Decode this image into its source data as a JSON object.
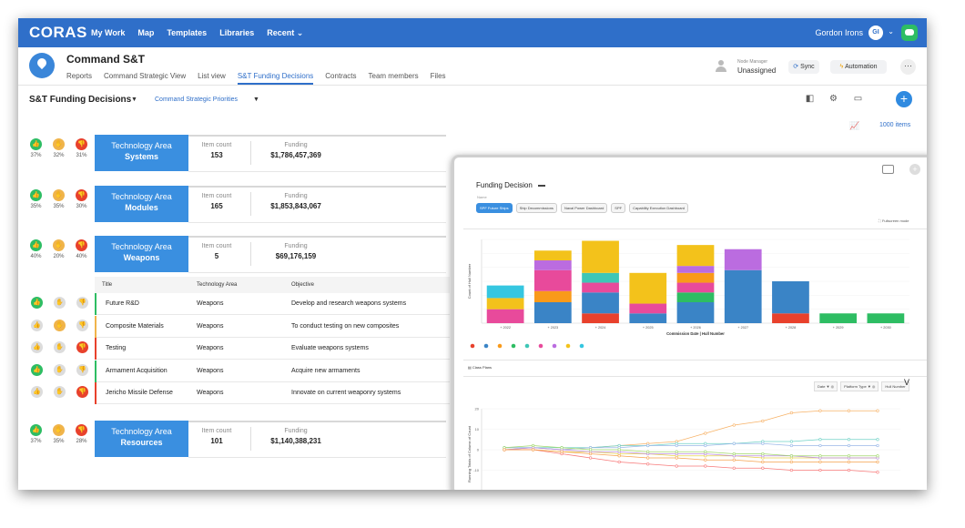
{
  "topbar": {
    "logo": "CORAS",
    "nav": [
      "My Work",
      "Map",
      "Templates",
      "Libraries",
      "Recent"
    ],
    "recent_caret": "⌄",
    "user_name": "Gordon Irons",
    "user_initials": "GI"
  },
  "project": {
    "title": "Command S&T",
    "tabs": [
      "Reports",
      "Command Strategic View",
      "List view",
      "S&T Funding Decisions",
      "Contracts",
      "Team members",
      "Files"
    ],
    "active_tab": "S&T Funding Decisions",
    "manager_label": "Node Manager",
    "manager_value": "Unassigned",
    "sync_label": "Sync",
    "automation_label": "Automation",
    "more_label": "···"
  },
  "subbar": {
    "title": "S&T Funding Decisions",
    "filter": "Command Strategic Priorities",
    "items_count": "1000 items"
  },
  "areas": [
    {
      "label": "Technology Area",
      "name": "Systems",
      "count_label": "Item count",
      "count": "153",
      "funding_label": "Funding",
      "funding": "$1,786,457,369",
      "pcts": [
        "37%",
        "32%",
        "31%"
      ]
    },
    {
      "label": "Technology Area",
      "name": "Modules",
      "count_label": "Item count",
      "count": "165",
      "funding_label": "Funding",
      "funding": "$1,853,843,067",
      "pcts": [
        "35%",
        "35%",
        "30%"
      ]
    },
    {
      "label": "Technology Area",
      "name": "Weapons",
      "count_label": "Item count",
      "count": "5",
      "funding_label": "Funding",
      "funding": "$69,176,159",
      "pcts": [
        "40%",
        "20%",
        "40%"
      ]
    },
    {
      "label": "Technology Area",
      "name": "Resources",
      "count_label": "Item count",
      "count": "101",
      "funding_label": "Funding",
      "funding": "$1,140,388,231",
      "pcts": [
        "37%",
        "35%",
        "28%"
      ]
    }
  ],
  "table": {
    "headers": [
      "Title",
      "Technology Area",
      "Objective"
    ],
    "rows": [
      {
        "title": "Future R&D",
        "area": "Weapons",
        "objective": "Develop and research weapons systems",
        "vote": "up",
        "color": "#2ebd63"
      },
      {
        "title": "Composite Materials",
        "area": "Weapons",
        "objective": "To conduct testing on new composites",
        "vote": "neutral",
        "color": "#f0b44a"
      },
      {
        "title": "Testing",
        "area": "Weapons",
        "objective": "Evaluate weapons systems",
        "vote": "down",
        "color": "#e8412c"
      },
      {
        "title": "Armament Acquisition",
        "area": "Weapons",
        "objective": "Acquire new armaments",
        "vote": "up",
        "color": "#2ebd63"
      },
      {
        "title": "Jericho Missile Defense",
        "area": "Weapons",
        "objective": "Innovate on current weaponry systems",
        "vote": "down",
        "color": "#e8412c"
      }
    ]
  },
  "overlay": {
    "title": "Funding Decision",
    "small_label": "Name",
    "tabs": [
      "SPF Future Ships",
      "Ship Decommissions",
      "Naval Power Dashboard",
      "SPF",
      "Capability Execution Dashboard"
    ],
    "fullscreen": "Fullscreen mode",
    "class_plans": "Class Plans",
    "filters": [
      "Date ▼ ◎",
      "Platform Type ▼ ◎",
      "Hull Number"
    ],
    "collapse": "V"
  },
  "chart_data": [
    {
      "type": "bar",
      "stacked": true,
      "categories": [
        "2022",
        "2023",
        "2024",
        "2025",
        "2026",
        "2027",
        "2028",
        "2029",
        "2030"
      ],
      "xlabel": "Commission Date | Hull Number",
      "ylabel": "Count of Hull Number",
      "ylim": [
        0,
        6
      ],
      "segments": [
        [
          {
            "v": 1,
            "c": "#e84a9b"
          },
          {
            "v": 0.8,
            "c": "#f3c21b"
          },
          {
            "v": 0.9,
            "c": "#35c6e0"
          }
        ],
        [
          {
            "v": 1.5,
            "c": "#3a84c6"
          },
          {
            "v": 0.8,
            "c": "#f99a1a"
          },
          {
            "v": 1.5,
            "c": "#e84a9b"
          },
          {
            "v": 0.7,
            "c": "#bb6ce0"
          },
          {
            "v": 0.7,
            "c": "#f3c21b"
          }
        ],
        [
          {
            "v": 0.7,
            "c": "#e8412c"
          },
          {
            "v": 1.5,
            "c": "#3a84c6"
          },
          {
            "v": 0.7,
            "c": "#e84a9b"
          },
          {
            "v": 0.7,
            "c": "#3ec6b6"
          },
          {
            "v": 2.3,
            "c": "#f3c21b"
          }
        ],
        [
          {
            "v": 0.7,
            "c": "#3a84c6"
          },
          {
            "v": 0.7,
            "c": "#e84a9b"
          },
          {
            "v": 2.2,
            "c": "#f3c21b"
          }
        ],
        [
          {
            "v": 1.5,
            "c": "#3a84c6"
          },
          {
            "v": 0.7,
            "c": "#2ebd63"
          },
          {
            "v": 0.7,
            "c": "#e84a9b"
          },
          {
            "v": 0.7,
            "c": "#f99a1a"
          },
          {
            "v": 0.5,
            "c": "#bb6ce0"
          },
          {
            "v": 1.5,
            "c": "#f3c21b"
          }
        ],
        [
          {
            "v": 3.8,
            "c": "#3a84c6"
          },
          {
            "v": 1.5,
            "c": "#bb6ce0"
          }
        ],
        [
          {
            "v": 0.7,
            "c": "#e8412c"
          },
          {
            "v": 2.3,
            "c": "#3a84c6"
          }
        ],
        [
          {
            "v": 0.7,
            "c": "#2ebd63"
          }
        ],
        [
          {
            "v": 0.7,
            "c": "#2ebd63"
          }
        ]
      ],
      "legend_colors": [
        "#e8412c",
        "#3a84c6",
        "#f99a1a",
        "#2ebd63",
        "#3ec6b6",
        "#e84a9b",
        "#bb6ce0",
        "#f3c21b",
        "#35c6e0"
      ]
    },
    {
      "type": "line",
      "ylabel": "Running Totals of Column of Count",
      "ylim": [
        -20,
        20
      ],
      "yticks": [
        "20",
        "10",
        "0",
        "-10"
      ],
      "x_count": 11,
      "series": [
        {
          "color": "#f7b267",
          "values": [
            0,
            1,
            0,
            1,
            2,
            3,
            4,
            8,
            12,
            14,
            18,
            19,
            19,
            19
          ]
        },
        {
          "color": "#6fd1c6",
          "values": [
            1,
            1,
            1,
            1,
            2,
            2,
            3,
            3,
            3,
            4,
            4,
            5,
            5,
            5
          ]
        },
        {
          "color": "#9ab8e8",
          "values": [
            1,
            1,
            0,
            1,
            1,
            2,
            2,
            2,
            3,
            3,
            2,
            2,
            2,
            2
          ]
        },
        {
          "color": "#e6d34d",
          "values": [
            0,
            0,
            -1,
            -1,
            -2,
            -2,
            -3,
            -3,
            -3,
            -4,
            -4,
            -4,
            -4,
            -4
          ]
        },
        {
          "color": "#bb8be0",
          "values": [
            0,
            1,
            0,
            -1,
            -1,
            -2,
            -2,
            -2,
            -3,
            -3,
            -3,
            -4,
            -4,
            -4
          ]
        },
        {
          "color": "#f77a7a",
          "values": [
            0,
            0,
            -2,
            -4,
            -6,
            -7,
            -8,
            -8,
            -9,
            -9,
            -10,
            -10,
            -10,
            -11
          ]
        },
        {
          "color": "#a0d86a",
          "values": [
            1,
            2,
            1,
            0,
            0,
            -1,
            -1,
            -1,
            -2,
            -2,
            -3,
            -3,
            -3,
            -3
          ]
        },
        {
          "color": "#f5a24e",
          "values": [
            0,
            0,
            -1,
            -2,
            -3,
            -4,
            -4,
            -5,
            -5,
            -6,
            -6,
            -6,
            -6,
            -6
          ]
        }
      ]
    }
  ]
}
